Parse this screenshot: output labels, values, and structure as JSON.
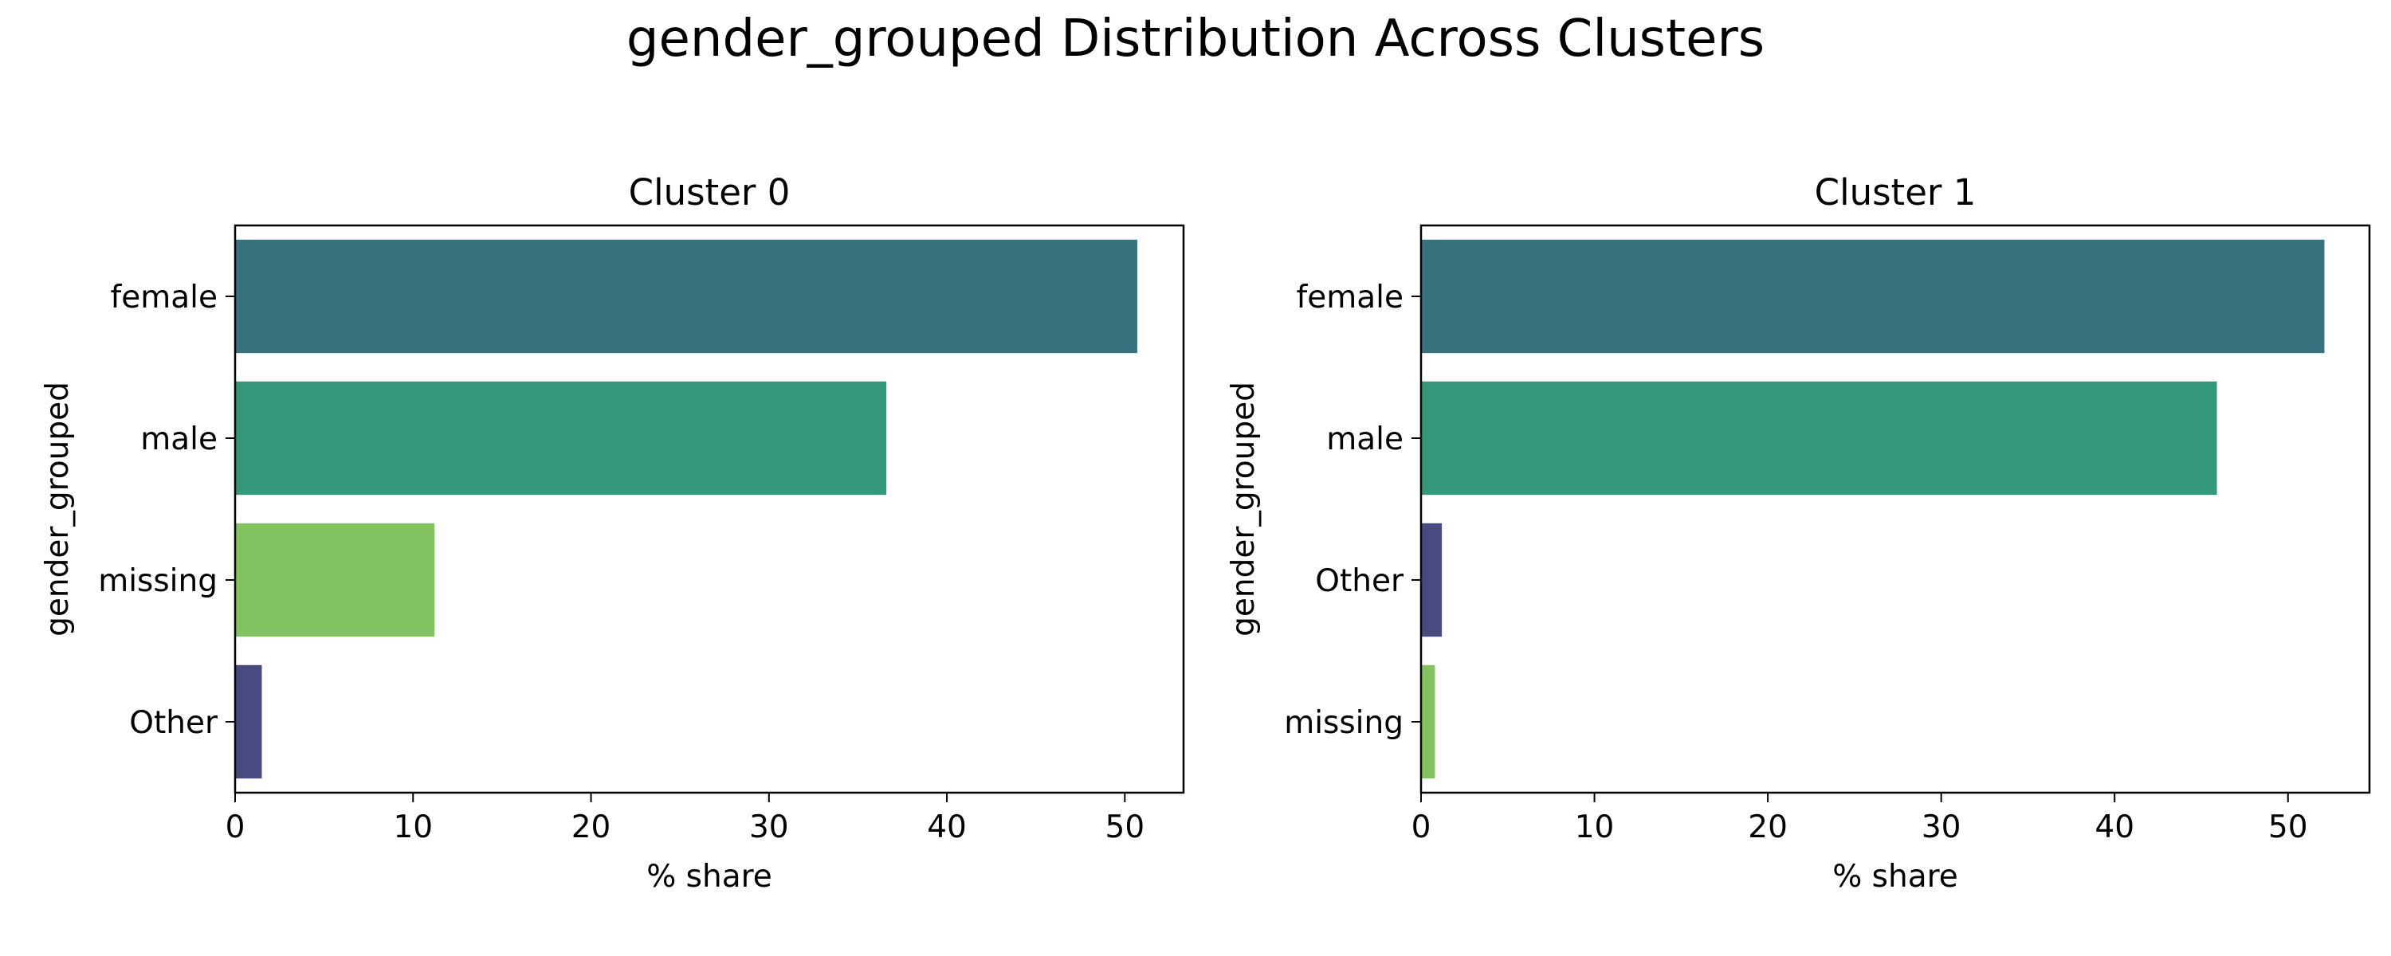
{
  "figure": {
    "title": "gender_grouped Distribution Across Clusters"
  },
  "chart_data": [
    {
      "type": "bar",
      "orientation": "horizontal",
      "title": "Cluster 0",
      "categories": [
        "female",
        "male",
        "missing",
        "Other"
      ],
      "values": [
        50.7,
        36.6,
        11.2,
        1.5
      ],
      "colors": [
        "#38727f",
        "#35987b",
        "#82c261",
        "#474b7f"
      ],
      "xlabel": "% share",
      "ylabel": "gender_grouped",
      "xlim": [
        0,
        53.3
      ],
      "xticks": [
        0,
        10,
        20,
        30,
        40,
        50
      ],
      "grid": false,
      "legend": "none"
    },
    {
      "type": "bar",
      "orientation": "horizontal",
      "title": "Cluster 1",
      "categories": [
        "female",
        "male",
        "Other",
        "missing"
      ],
      "values": [
        52.1,
        45.9,
        1.2,
        0.8
      ],
      "colors": [
        "#38727f",
        "#35987b",
        "#474b7f",
        "#82c261"
      ],
      "xlabel": "% share",
      "ylabel": "gender_grouped",
      "xlim": [
        0,
        54.7
      ],
      "xticks": [
        0,
        10,
        20,
        30,
        40,
        50
      ],
      "grid": false,
      "legend": "none"
    }
  ]
}
